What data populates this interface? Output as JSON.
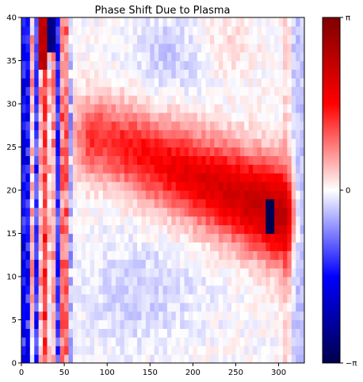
{
  "chart_data": {
    "type": "heatmap",
    "title": "Phase Shift Due to Plasma",
    "xlabel": "",
    "ylabel": "",
    "xlim": [
      0,
      330
    ],
    "ylim": [
      0,
      40
    ],
    "x_ticks": [
      0,
      50,
      100,
      150,
      200,
      250,
      300
    ],
    "y_ticks": [
      0,
      5,
      10,
      15,
      20,
      25,
      30,
      35,
      40
    ],
    "colormap": "seismic",
    "colormap_stops": [
      "#00004c",
      "#0000ff",
      "#ffffff",
      "#ff0000",
      "#7f0000"
    ],
    "value_range": [
      -3.14159,
      3.14159
    ],
    "colorbar_tick_labels": [
      "−π",
      "0",
      "π"
    ],
    "grid": false,
    "features": [
      {
        "label": "main plasma phase band",
        "x_center_start": 95,
        "x_center_end": 310,
        "y_center_start": 26,
        "y_center_end": 17,
        "peak_value": 2.6
      },
      {
        "label": "phase-wrap pocket",
        "x": [
          287,
          297
        ],
        "y": [
          15,
          19
        ],
        "value": -3.1
      },
      {
        "label": "left vertical striations",
        "x": [
          0,
          60
        ],
        "alternating": true
      }
    ]
  }
}
